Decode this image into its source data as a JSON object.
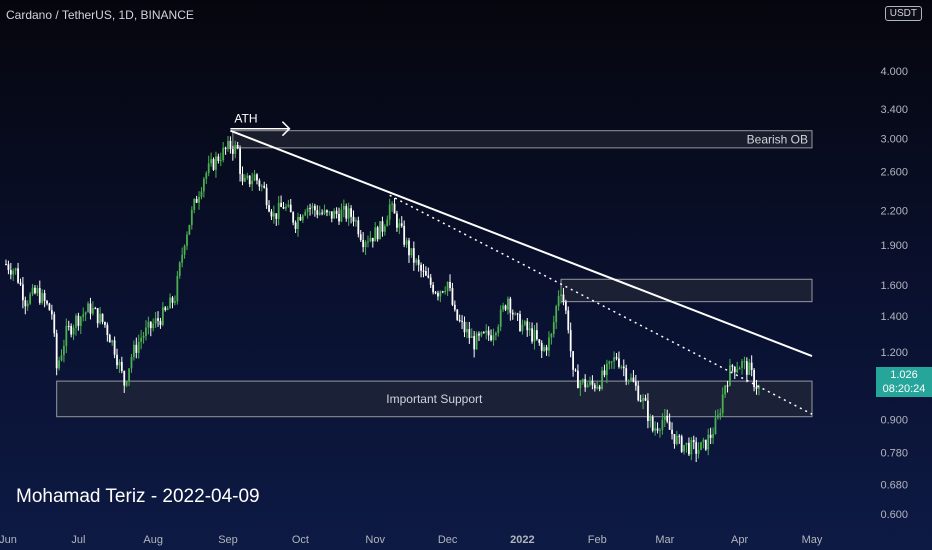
{
  "header": {
    "title": "Cardano / TetherUS, 1D, BINANCE",
    "currency": "USDT"
  },
  "watermark": "Mohamad Teriz - 2022-04-09",
  "last_price": {
    "value": "1.026",
    "countdown": "08:20:24"
  },
  "colors": {
    "up": "#4caf50",
    "down": "#ffffff",
    "last_price_tag": "#26a69a",
    "zone_border": "#9598a1",
    "zone_fill": "#2a2e39"
  },
  "chart_data": {
    "type": "candlestick",
    "y_scale": "log",
    "ylim": [
      0.56,
      5.2
    ],
    "xlim": [
      "2021-06-01",
      "2022-05-01"
    ],
    "y_ticks": [
      "0.600",
      "0.680",
      "0.780",
      "0.900",
      "1.200",
      "1.400",
      "1.600",
      "1.900",
      "2.200",
      "2.600",
      "3.000",
      "3.400",
      "4.000"
    ],
    "x_ticks": [
      {
        "label": "Jun",
        "date": "2021-06-01"
      },
      {
        "label": "Jul",
        "date": "2021-07-01"
      },
      {
        "label": "Aug",
        "date": "2021-08-01"
      },
      {
        "label": "Sep",
        "date": "2021-09-01"
      },
      {
        "label": "Oct",
        "date": "2021-10-01"
      },
      {
        "label": "Nov",
        "date": "2021-11-01"
      },
      {
        "label": "Dec",
        "date": "2021-12-01"
      },
      {
        "label": "2022",
        "date": "2022-01-01",
        "bold": true
      },
      {
        "label": "Feb",
        "date": "2022-02-01"
      },
      {
        "label": "Mar",
        "date": "2022-03-01"
      },
      {
        "label": "Apr",
        "date": "2022-04-01"
      },
      {
        "label": "May",
        "date": "2022-05-01"
      }
    ],
    "price_path": [
      [
        "2021-06-01",
        1.75
      ],
      [
        "2021-06-05",
        1.7
      ],
      [
        "2021-06-09",
        1.5
      ],
      [
        "2021-06-14",
        1.55
      ],
      [
        "2021-06-20",
        1.42
      ],
      [
        "2021-06-22",
        1.12
      ],
      [
        "2021-06-26",
        1.3
      ],
      [
        "2021-06-30",
        1.38
      ],
      [
        "2021-07-06",
        1.45
      ],
      [
        "2021-07-12",
        1.35
      ],
      [
        "2021-07-16",
        1.22
      ],
      [
        "2021-07-20",
        1.05
      ],
      [
        "2021-07-23",
        1.18
      ],
      [
        "2021-07-27",
        1.28
      ],
      [
        "2021-08-01",
        1.35
      ],
      [
        "2021-08-06",
        1.42
      ],
      [
        "2021-08-10",
        1.52
      ],
      [
        "2021-08-14",
        1.95
      ],
      [
        "2021-08-18",
        2.25
      ],
      [
        "2021-08-22",
        2.55
      ],
      [
        "2021-08-26",
        2.7
      ],
      [
        "2021-08-29",
        2.8
      ],
      [
        "2021-09-02",
        2.9
      ],
      [
        "2021-09-05",
        2.85
      ],
      [
        "2021-09-07",
        2.45
      ],
      [
        "2021-09-12",
        2.55
      ],
      [
        "2021-09-16",
        2.4
      ],
      [
        "2021-09-20",
        2.15
      ],
      [
        "2021-09-24",
        2.25
      ],
      [
        "2021-09-29",
        2.1
      ],
      [
        "2021-10-03",
        2.25
      ],
      [
        "2021-10-08",
        2.2
      ],
      [
        "2021-10-12",
        2.15
      ],
      [
        "2021-10-18",
        2.18
      ],
      [
        "2021-10-23",
        2.15
      ],
      [
        "2021-10-27",
        1.95
      ],
      [
        "2021-10-31",
        1.98
      ],
      [
        "2021-11-04",
        2.05
      ],
      [
        "2021-11-07",
        2.25
      ],
      [
        "2021-11-10",
        2.1
      ],
      [
        "2021-11-15",
        1.85
      ],
      [
        "2021-11-19",
        1.72
      ],
      [
        "2021-11-23",
        1.62
      ],
      [
        "2021-11-27",
        1.56
      ],
      [
        "2021-12-01",
        1.62
      ],
      [
        "2021-12-04",
        1.4
      ],
      [
        "2021-12-08",
        1.32
      ],
      [
        "2021-12-12",
        1.25
      ],
      [
        "2021-12-15",
        1.27
      ],
      [
        "2021-12-19",
        1.3
      ],
      [
        "2021-12-23",
        1.4
      ],
      [
        "2021-12-26",
        1.52
      ],
      [
        "2021-12-29",
        1.38
      ],
      [
        "2022-01-02",
        1.33
      ],
      [
        "2022-01-06",
        1.28
      ],
      [
        "2022-01-09",
        1.2
      ],
      [
        "2022-01-13",
        1.28
      ],
      [
        "2022-01-16",
        1.55
      ],
      [
        "2022-01-17",
        1.58
      ],
      [
        "2022-01-20",
        1.35
      ],
      [
        "2022-01-22",
        1.08
      ],
      [
        "2022-01-26",
        1.05
      ],
      [
        "2022-01-30",
        1.04
      ],
      [
        "2022-02-02",
        1.06
      ],
      [
        "2022-02-06",
        1.12
      ],
      [
        "2022-02-09",
        1.18
      ],
      [
        "2022-02-13",
        1.1
      ],
      [
        "2022-02-17",
        1.03
      ],
      [
        "2022-02-21",
        0.95
      ],
      [
        "2022-02-24",
        0.86
      ],
      [
        "2022-02-28",
        0.9
      ],
      [
        "2022-03-03",
        0.86
      ],
      [
        "2022-03-07",
        0.81
      ],
      [
        "2022-03-11",
        0.8
      ],
      [
        "2022-03-14",
        0.79
      ],
      [
        "2022-03-17",
        0.8
      ],
      [
        "2022-03-20",
        0.84
      ],
      [
        "2022-03-23",
        0.9
      ],
      [
        "2022-03-26",
        1.05
      ],
      [
        "2022-03-29",
        1.13
      ],
      [
        "2022-04-02",
        1.14
      ],
      [
        "2022-04-05",
        1.11
      ],
      [
        "2022-04-07",
        1.06
      ],
      [
        "2022-04-09",
        1.026
      ]
    ],
    "annotations": {
      "ath": {
        "label": "ATH",
        "date": "2021-09-02",
        "price": 3.1
      },
      "zones": [
        {
          "label": "Bearish OB",
          "from": "2021-09-03",
          "to": "2022-05-01",
          "low": 2.88,
          "high": 3.1
        },
        {
          "label": "",
          "from": "2022-01-17",
          "to": "2022-05-01",
          "low": 1.49,
          "high": 1.64
        },
        {
          "label": "Important Support",
          "from": "2021-06-22",
          "to": "2022-05-01",
          "low": 0.91,
          "high": 1.06
        }
      ],
      "trendlines": [
        {
          "style": "solid",
          "from": [
            "2021-09-02",
            3.1
          ],
          "to": [
            "2022-05-01",
            1.18
          ]
        },
        {
          "style": "dotted",
          "from": [
            "2021-11-07",
            2.35
          ],
          "to": [
            "2022-05-01",
            0.92
          ]
        }
      ]
    }
  }
}
